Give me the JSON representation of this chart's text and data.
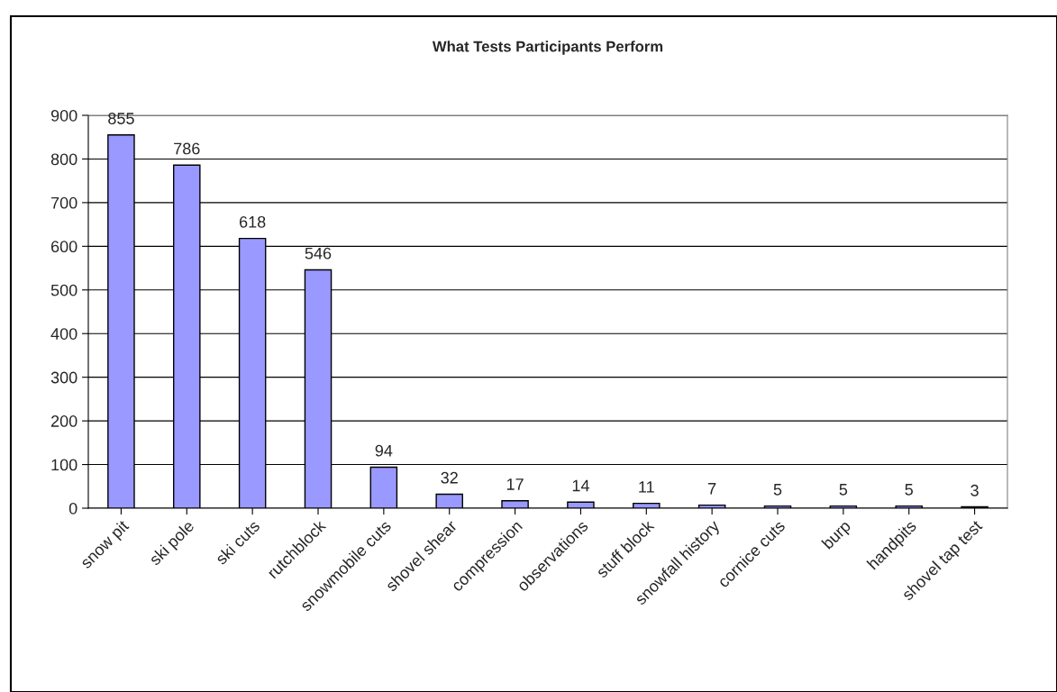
{
  "chart_data": {
    "type": "bar",
    "title": "What Tests Participants Perform",
    "categories": [
      "snow pit",
      "ski pole",
      "ski cuts",
      "rutchblock",
      "snowmobile cuts",
      "shovel shear",
      "compression",
      "observations",
      "stuff block",
      "snowfall history",
      "cornice cuts",
      "burp",
      "handpits",
      "shovel tap test"
    ],
    "values": [
      855,
      786,
      618,
      546,
      94,
      32,
      17,
      14,
      11,
      7,
      5,
      5,
      5,
      3
    ],
    "color": "#9999ff",
    "data_labels": true,
    "ylim": [
      0,
      900
    ],
    "yticks": [
      0,
      100,
      200,
      300,
      400,
      500,
      600,
      700,
      800,
      900
    ],
    "grid": "y"
  }
}
